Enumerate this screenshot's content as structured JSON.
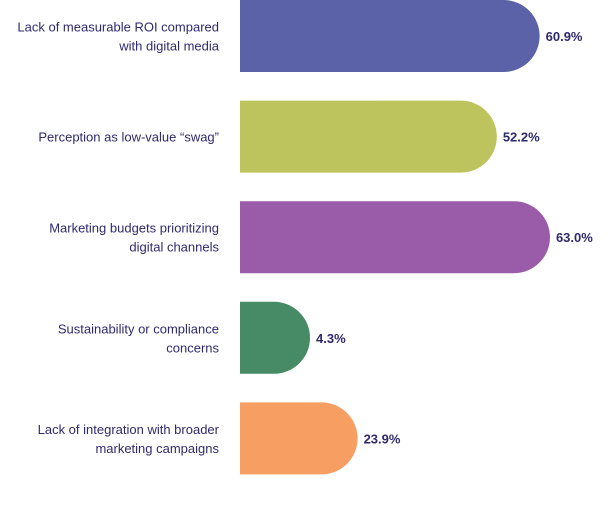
{
  "chart_data": {
    "type": "bar",
    "orientation": "horizontal",
    "categories": [
      [
        "Lack of measurable ROI compared",
        "with digital media"
      ],
      [
        "Perception as low-value “swag”"
      ],
      [
        "Marketing budgets prioritizing",
        "digital channels"
      ],
      [
        "Sustainability or compliance",
        "concerns"
      ],
      [
        "Lack of integration with broader",
        "marketing campaigns"
      ]
    ],
    "values": [
      60.9,
      52.2,
      63.0,
      4.3,
      23.9
    ],
    "value_labels": [
      "60.9%",
      "52.2%",
      "63.0%",
      "4.3%",
      "23.9%"
    ],
    "colors": [
      "#5b62a8",
      "#bdc45e",
      "#9a5ba8",
      "#478a66",
      "#f79e63"
    ],
    "unit": "%",
    "title": "",
    "xlabel": "",
    "ylabel": "",
    "grid": false,
    "legend": "none"
  }
}
